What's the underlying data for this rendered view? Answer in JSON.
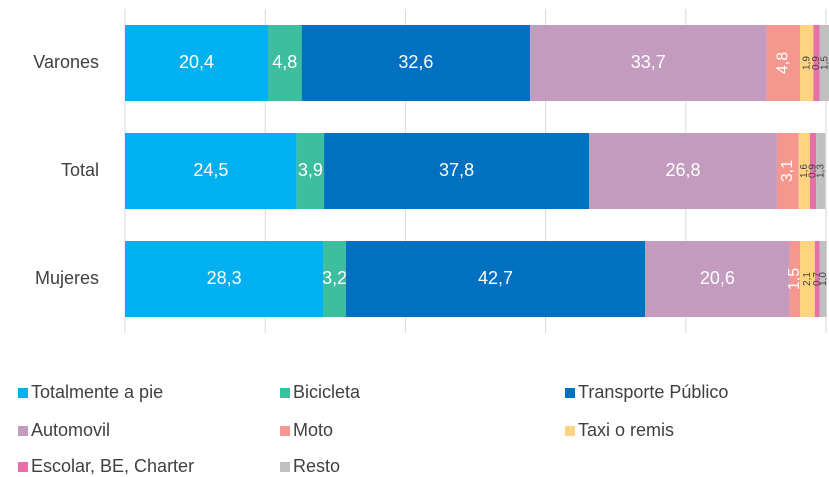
{
  "chart_data": {
    "type": "bar",
    "orientation": "horizontal",
    "stacked": true,
    "categories": [
      "Varones",
      "Total",
      "Mujeres"
    ],
    "xlim": [
      0,
      100
    ],
    "xticks": [
      0,
      20,
      40,
      60,
      80,
      100
    ],
    "grid": true,
    "legend": "bottom",
    "series": [
      {
        "name": "Totalmente a pie",
        "color": "#00b0f0",
        "values": [
          20.4,
          24.5,
          28.3
        ],
        "value_labels": [
          "20,4",
          "24,5",
          "28,3"
        ]
      },
      {
        "name": "Bicicleta",
        "color": "#3dbe9e",
        "values": [
          4.8,
          3.9,
          3.2
        ],
        "value_labels": [
          "4,8",
          "3,9",
          "3,2"
        ]
      },
      {
        "name": "Transporte Público",
        "color": "#0070c0",
        "values": [
          32.6,
          37.8,
          42.7
        ],
        "value_labels": [
          "32,6",
          "37,8",
          "42,7"
        ]
      },
      {
        "name": "Automovil",
        "color": "#c39bbf",
        "values": [
          33.7,
          26.8,
          20.6
        ],
        "value_labels": [
          "33,7",
          "26,8",
          "20,6"
        ]
      },
      {
        "name": "Moto",
        "color": "#f4978e",
        "values": [
          4.8,
          3.1,
          1.5
        ],
        "value_labels": [
          "4,8",
          "3,1",
          "1,5"
        ]
      },
      {
        "name": "Taxi o remis",
        "color": "#ffd480",
        "values": [
          1.9,
          1.6,
          2.1
        ],
        "value_labels": [
          "1,9",
          "1,6",
          "2,1"
        ]
      },
      {
        "name": "Escolar, BE, Charter",
        "color": "#e870a8",
        "values": [
          0.9,
          0.9,
          0.7
        ],
        "value_labels": [
          "0,9",
          "0,9",
          "0,7"
        ]
      },
      {
        "name": "Resto",
        "color": "#c0c0c0",
        "values": [
          1.5,
          1.3,
          1.0
        ],
        "value_labels": [
          "1,5",
          "1,3",
          "1,0"
        ]
      }
    ]
  }
}
